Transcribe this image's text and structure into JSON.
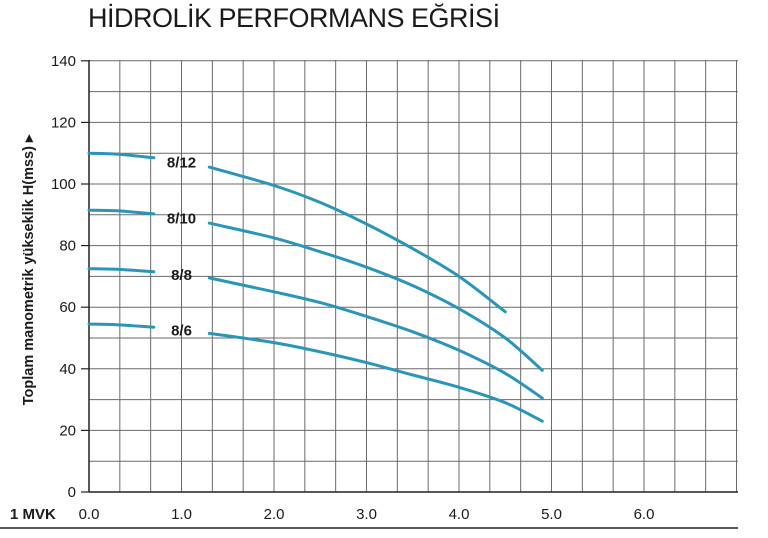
{
  "title": "HİDROLİK PERFORMANS EĞRİSİ",
  "colors": {
    "curve": "#2a95b8",
    "grid": "#6a6a6a",
    "axis": "#222222"
  },
  "chart_data": {
    "type": "line",
    "title": "HİDROLİK PERFORMANS EĞRİSİ",
    "ylabel": "Toplam manometrik yükseklik H(mss) ▸",
    "xunit_label": "1 MVK",
    "xlim": [
      0,
      7
    ],
    "ylim": [
      0,
      140
    ],
    "xticks": [
      0,
      1,
      2,
      3,
      4,
      5,
      6
    ],
    "xtick_labels": [
      "0.0",
      "1.0",
      "2.0",
      "3.0",
      "4.0",
      "5.0",
      "6.0"
    ],
    "yticks": [
      0,
      20,
      40,
      60,
      80,
      100,
      120,
      140
    ],
    "ytick_labels": [
      "0",
      "20",
      "40",
      "60",
      "80",
      "100",
      "120",
      "140"
    ],
    "grid": true,
    "series": [
      {
        "name": "8/12",
        "x": [
          0.0,
          0.3,
          0.7,
          1.3,
          2.0,
          2.5,
          3.0,
          3.5,
          4.0,
          4.5
        ],
        "y": [
          110,
          109.7,
          108.5,
          105.5,
          99.5,
          94,
          87,
          79,
          70,
          58.5
        ]
      },
      {
        "name": "8/10",
        "x": [
          0.0,
          0.3,
          0.7,
          1.3,
          2.0,
          2.5,
          3.0,
          3.5,
          4.0,
          4.5,
          4.9
        ],
        "y": [
          91.5,
          91.3,
          90.3,
          87.3,
          82.5,
          78,
          73,
          67,
          59.5,
          50,
          39.5
        ]
      },
      {
        "name": "8/8",
        "x": [
          0.0,
          0.3,
          0.7,
          1.3,
          2.0,
          2.5,
          3.0,
          3.5,
          4.0,
          4.5,
          4.9
        ],
        "y": [
          72.5,
          72.3,
          71.5,
          69.5,
          65,
          61.5,
          57,
          52,
          46,
          38.5,
          30.5
        ]
      },
      {
        "name": "8/6",
        "x": [
          0.0,
          0.3,
          0.7,
          1.3,
          2.0,
          2.5,
          3.0,
          3.5,
          4.0,
          4.5,
          4.9
        ],
        "y": [
          54.5,
          54.3,
          53.5,
          51.5,
          48.5,
          45.5,
          42,
          38,
          34,
          29,
          23
        ]
      }
    ]
  }
}
